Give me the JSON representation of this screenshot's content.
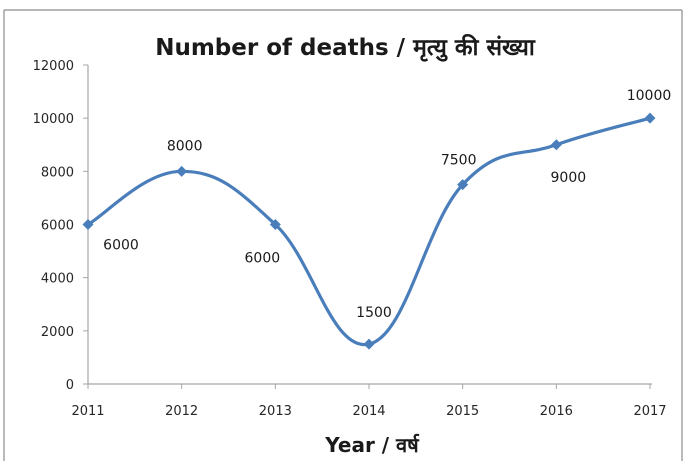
{
  "chart_data": {
    "type": "line",
    "title": "Number of deaths / मृत्यु की संख्या",
    "xlabel": "Year / वर्ष",
    "ylabel": "",
    "categories": [
      "2011",
      "2012",
      "2013",
      "2014",
      "2015",
      "2016",
      "2017"
    ],
    "series": [
      {
        "values": [
          6000,
          8000,
          6000,
          1500,
          7500,
          9000,
          10000
        ]
      }
    ],
    "data_labels": [
      "6000",
      "8000",
      "6000",
      "1500",
      "7500",
      "9000",
      "10000"
    ],
    "y_ticks": [
      "0",
      "2000",
      "4000",
      "6000",
      "8000",
      "10000",
      "12000"
    ],
    "ylim": [
      0,
      12000
    ],
    "grid": false,
    "legend": "none",
    "smooth": true,
    "series_color": "#4a7ebb"
  }
}
